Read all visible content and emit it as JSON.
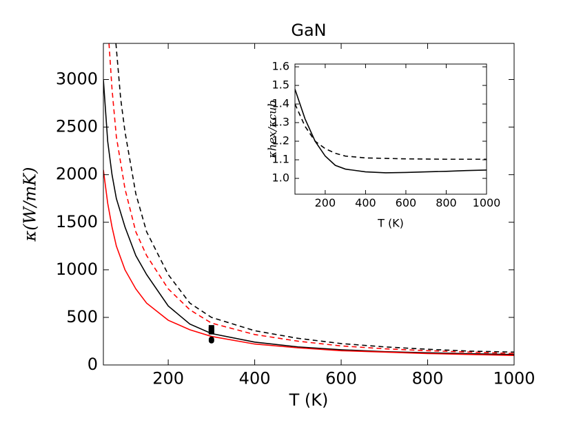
{
  "chart_data": [
    {
      "type": "line",
      "title": "GaN",
      "xlabel": "T (K)",
      "ylabel": "κ(W/mK)",
      "xlim": [
        50,
        1000
      ],
      "xticks": [
        200,
        400,
        600,
        800,
        1000
      ],
      "ylim": [
        0,
        3380
      ],
      "yticks": [
        0,
        500,
        1000,
        1500,
        2000,
        2500,
        3000
      ],
      "series": [
        {
          "color": "#000000",
          "linestyle": "solid",
          "x": [
            50,
            60,
            70,
            80,
            100,
            125,
            150,
            200,
            250,
            300,
            400,
            500,
            600,
            700,
            800,
            900,
            1000
          ],
          "values": [
            3000,
            2350,
            2000,
            1750,
            1450,
            1150,
            950,
            620,
            430,
            330,
            240,
            190,
            160,
            140,
            128,
            118,
            110
          ]
        },
        {
          "color": "#ff0000",
          "linestyle": "solid",
          "x": [
            50,
            60,
            70,
            80,
            100,
            125,
            150,
            200,
            250,
            300,
            400,
            500,
            600,
            700,
            800,
            900,
            1000
          ],
          "values": [
            2050,
            1700,
            1450,
            1250,
            1000,
            800,
            650,
            470,
            370,
            300,
            220,
            180,
            150,
            135,
            120,
            110,
            100
          ]
        },
        {
          "color": "#ff0000",
          "linestyle": "dashed",
          "x": [
            63,
            70,
            80,
            100,
            125,
            150,
            200,
            250,
            300,
            400,
            500,
            600,
            700,
            800,
            900,
            1000
          ],
          "values": [
            3380,
            2900,
            2400,
            1850,
            1400,
            1150,
            800,
            580,
            440,
            320,
            250,
            200,
            170,
            150,
            135,
            120
          ]
        },
        {
          "color": "#000000",
          "linestyle": "dashed",
          "x": [
            79,
            90,
            100,
            125,
            150,
            200,
            250,
            300,
            400,
            500,
            600,
            700,
            800,
            900,
            1000
          ],
          "values": [
            3380,
            2800,
            2450,
            1800,
            1400,
            950,
            650,
            500,
            360,
            280,
            225,
            190,
            165,
            145,
            135
          ]
        },
        {
          "color": "#000000",
          "linestyle": "none",
          "marker": "square",
          "x": [
            300,
            300,
            300
          ],
          "values": [
            390,
            370,
            350
          ]
        },
        {
          "color": "#000000",
          "linestyle": "none",
          "marker": "circle",
          "x": [
            300,
            300
          ],
          "values": [
            270,
            255
          ]
        }
      ]
    },
    {
      "type": "line",
      "xlabel": "T (K)",
      "ylabel": "κhex/κcub",
      "xlim": [
        50,
        1000
      ],
      "xticks": [
        200,
        400,
        600,
        800,
        1000
      ],
      "ylim": [
        0.915,
        1.615
      ],
      "yticks": [
        {
          "value": 1.0,
          "label": "1.0"
        },
        {
          "value": 1.1,
          "label": "1.1"
        },
        {
          "value": 1.2,
          "label": "1.2"
        },
        {
          "value": 1.3,
          "label": "1.3"
        },
        {
          "value": 1.4,
          "label": "1.4"
        },
        {
          "value": 1.5,
          "label": "1.5"
        },
        {
          "value": 1.6,
          "label": "1.6"
        }
      ],
      "series": [
        {
          "color": "#000000",
          "linestyle": "solid",
          "x": [
            50,
            100,
            150,
            200,
            250,
            300,
            400,
            500,
            600,
            700,
            800,
            900,
            1000
          ],
          "values": [
            1.48,
            1.32,
            1.2,
            1.12,
            1.07,
            1.05,
            1.035,
            1.03,
            1.032,
            1.035,
            1.038,
            1.042,
            1.045
          ]
        },
        {
          "color": "#000000",
          "linestyle": "dashed",
          "x": [
            50,
            100,
            150,
            200,
            250,
            300,
            400,
            600,
            800,
            1000
          ],
          "values": [
            1.4,
            1.28,
            1.2,
            1.16,
            1.135,
            1.12,
            1.11,
            1.105,
            1.103,
            1.103
          ]
        }
      ]
    }
  ]
}
